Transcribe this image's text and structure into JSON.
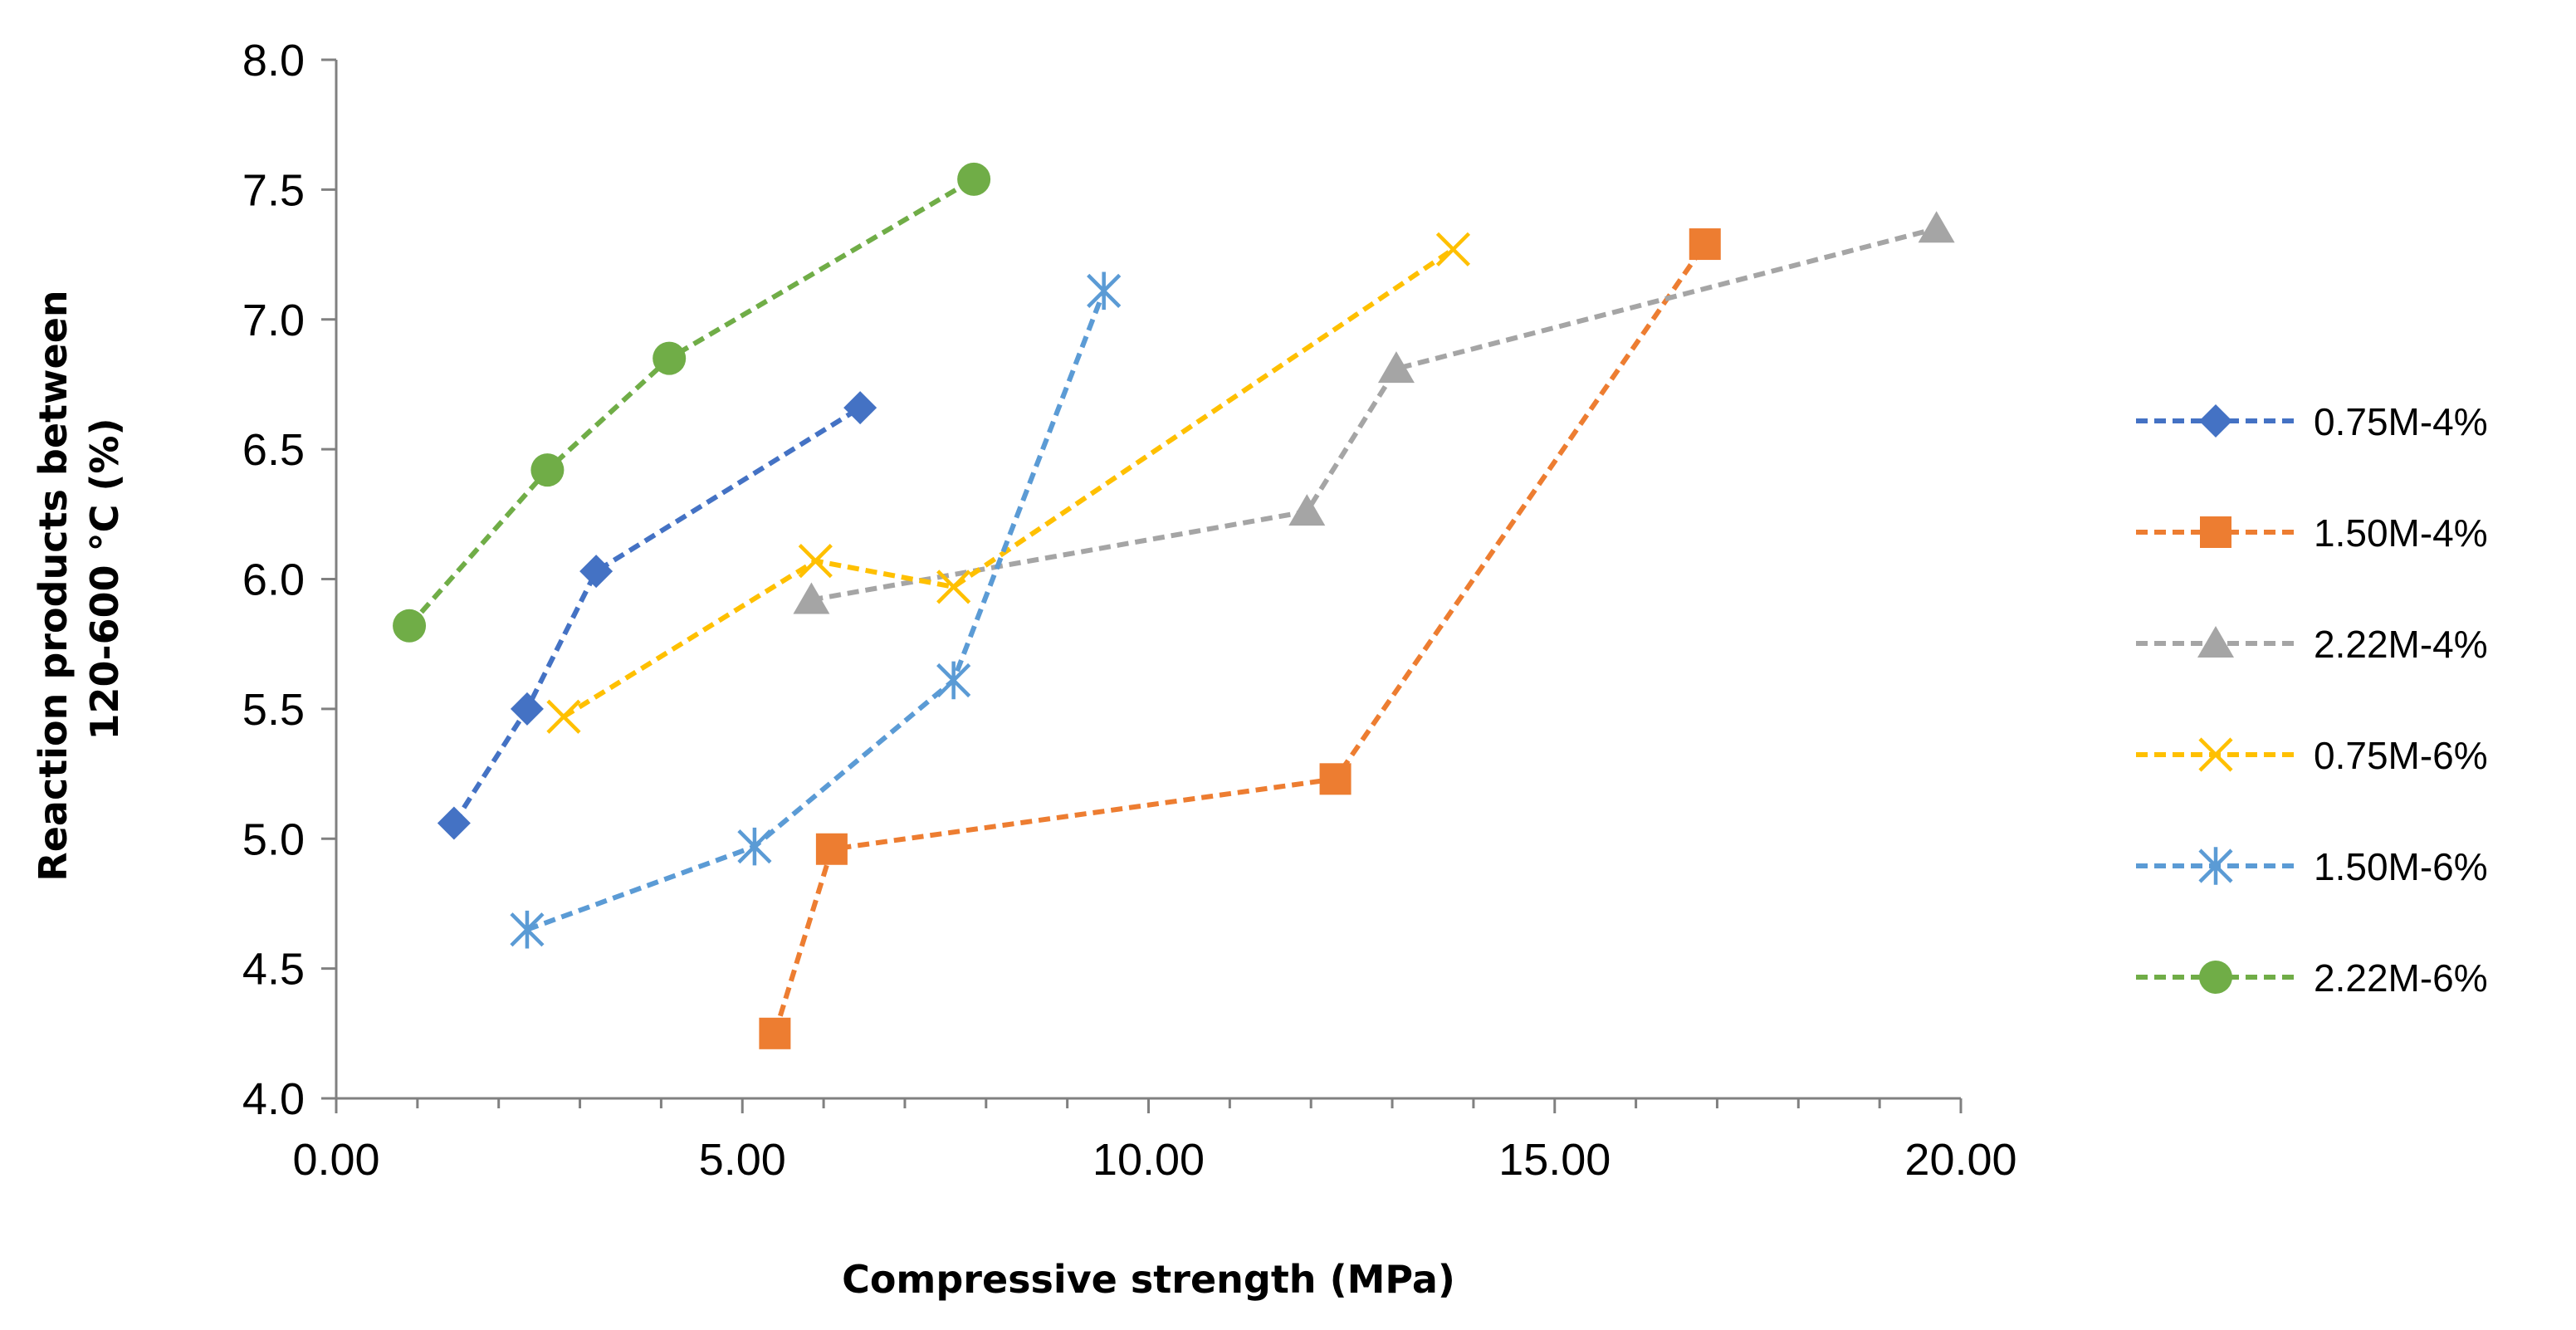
{
  "chart_data": {
    "type": "scatter",
    "title": "",
    "xlabel": "Compressive strength (MPa)",
    "ylabel_lines": [
      "Reaction products between",
      "120-600 °C (%)"
    ],
    "xlim": [
      0,
      20
    ],
    "ylim": [
      4.0,
      8.0
    ],
    "x_ticks": [
      0,
      5,
      10,
      15,
      20
    ],
    "x_tick_labels": [
      "0.00",
      "5.00",
      "10.00",
      "15.00",
      "20.00"
    ],
    "y_ticks": [
      4.0,
      4.5,
      5.0,
      5.5,
      6.0,
      6.5,
      7.0,
      7.5,
      8.0
    ],
    "y_tick_labels": [
      "4.0",
      "4.5",
      "5.0",
      "5.5",
      "6.0",
      "6.5",
      "7.0",
      "7.5",
      "8.0"
    ],
    "grid": false,
    "legend_position": "right",
    "line_style": "dashed",
    "series": [
      {
        "name": "0.75M-4%",
        "color": "#4472C4",
        "marker": "diamond",
        "points": [
          [
            1.45,
            5.06
          ],
          [
            2.35,
            5.5
          ],
          [
            3.2,
            6.03
          ],
          [
            6.45,
            6.66
          ]
        ]
      },
      {
        "name": "1.50M-4%",
        "color": "#ED7D31",
        "marker": "square",
        "points": [
          [
            5.4,
            4.25
          ],
          [
            6.1,
            4.96
          ],
          [
            12.3,
            5.23
          ],
          [
            16.85,
            7.29
          ]
        ]
      },
      {
        "name": "2.22M-4%",
        "color": "#A5A5A5",
        "marker": "triangle",
        "points": [
          [
            5.85,
            5.92
          ],
          [
            11.95,
            6.26
          ],
          [
            13.05,
            6.81
          ],
          [
            19.7,
            7.35
          ]
        ]
      },
      {
        "name": "0.75M-6%",
        "color": "#FFC000",
        "marker": "x",
        "points": [
          [
            2.8,
            5.47
          ],
          [
            5.9,
            6.07
          ],
          [
            7.6,
            5.97
          ],
          [
            13.75,
            7.27
          ]
        ]
      },
      {
        "name": "1.50M-6%",
        "color": "#5B9BD5",
        "marker": "asterisk",
        "points": [
          [
            2.35,
            4.65
          ],
          [
            5.15,
            4.97
          ],
          [
            7.6,
            5.61
          ],
          [
            9.45,
            7.11
          ]
        ]
      },
      {
        "name": "2.22M-6%",
        "color": "#70AD47",
        "marker": "circle",
        "points": [
          [
            0.9,
            5.82
          ],
          [
            2.6,
            6.42
          ],
          [
            4.1,
            6.85
          ],
          [
            7.85,
            7.54
          ]
        ]
      }
    ]
  }
}
